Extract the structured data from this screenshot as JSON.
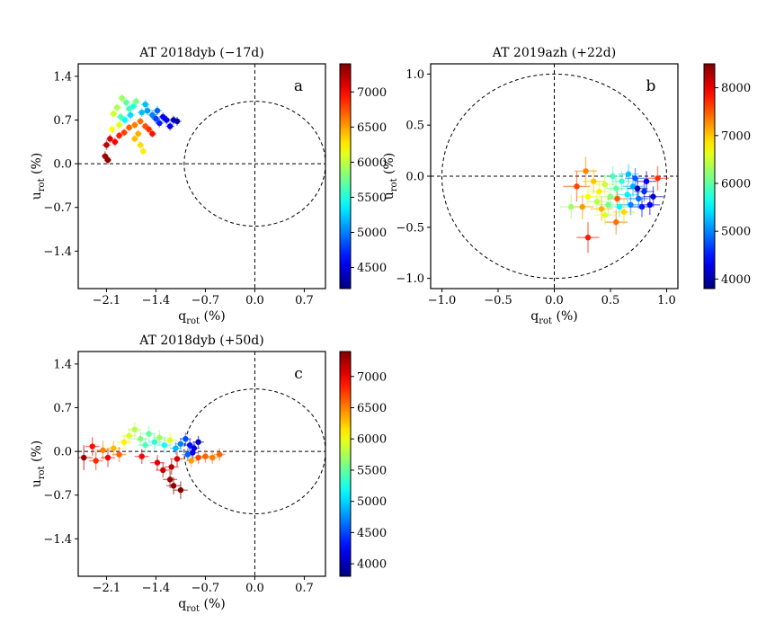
{
  "chart_data": [
    {
      "type": "scatter",
      "panel_label": "a",
      "title": "AT 2018dyb   (−17d)",
      "xlabel_main": "q",
      "xlabel_sub": "rot",
      "xlabel_unit": " (%)",
      "ylabel_main": "u",
      "ylabel_sub": "rot",
      "ylabel_unit": " (%)",
      "xlim": [
        -2.5,
        1.0
      ],
      "ylim": [
        -2.0,
        1.6
      ],
      "xticks": [
        -2.1,
        -1.4,
        -0.7,
        0.0,
        0.7
      ],
      "xtick_labels": [
        "−2.1",
        "−1.4",
        "−0.7",
        "0.0",
        "0.7"
      ],
      "yticks": [
        -1.4,
        -0.7,
        0.0,
        0.7,
        1.4
      ],
      "ytick_labels": [
        "−1.4",
        "−0.7",
        "0.0",
        "0.7",
        "1.4"
      ],
      "circle_radius": 1.0,
      "colorbar": {
        "min": 4200,
        "max": 7400,
        "ticks": [
          4500,
          5000,
          5500,
          6000,
          6500,
          7000
        ],
        "tick_labels": [
          "4500",
          "5000",
          "5500",
          "6000",
          "6500",
          "7000"
        ]
      },
      "points": [
        {
          "q": -2.12,
          "u": 0.12,
          "wl": 7300,
          "eq": 0.05,
          "eu": 0.08
        },
        {
          "q": -2.08,
          "u": 0.06,
          "wl": 7350,
          "eq": 0.05,
          "eu": 0.07
        },
        {
          "q": -2.1,
          "u": 0.3,
          "wl": 7200,
          "eq": 0.06,
          "eu": 0.08
        },
        {
          "q": -2.05,
          "u": 0.4,
          "wl": 7100,
          "eq": 0.05,
          "eu": 0.07
        },
        {
          "q": -1.98,
          "u": 0.35,
          "wl": 7000,
          "eq": 0.05,
          "eu": 0.07
        },
        {
          "q": -1.92,
          "u": 0.45,
          "wl": 6900,
          "eq": 0.05,
          "eu": 0.06
        },
        {
          "q": -1.85,
          "u": 0.5,
          "wl": 6800,
          "eq": 0.05,
          "eu": 0.06
        },
        {
          "q": -1.78,
          "u": 0.58,
          "wl": 6700,
          "eq": 0.05,
          "eu": 0.06
        },
        {
          "q": -1.7,
          "u": 0.62,
          "wl": 6600,
          "eq": 0.05,
          "eu": 0.06
        },
        {
          "q": -1.62,
          "u": 0.68,
          "wl": 6650,
          "eq": 0.05,
          "eu": 0.06
        },
        {
          "q": -1.55,
          "u": 0.6,
          "wl": 6750,
          "eq": 0.05,
          "eu": 0.06
        },
        {
          "q": -1.5,
          "u": 0.55,
          "wl": 6850,
          "eq": 0.05,
          "eu": 0.06
        },
        {
          "q": -1.45,
          "u": 0.48,
          "wl": 6950,
          "eq": 0.05,
          "eu": 0.06
        },
        {
          "q": -1.62,
          "u": 0.3,
          "wl": 6300,
          "eq": 0.05,
          "eu": 0.06
        },
        {
          "q": -1.58,
          "u": 0.2,
          "wl": 6250,
          "eq": 0.05,
          "eu": 0.06
        },
        {
          "q": -1.7,
          "u": 0.4,
          "wl": 6400,
          "eq": 0.05,
          "eu": 0.06
        },
        {
          "q": -1.65,
          "u": 0.48,
          "wl": 6450,
          "eq": 0.05,
          "eu": 0.06
        },
        {
          "q": -2.0,
          "u": 0.8,
          "wl": 6050,
          "eq": 0.06,
          "eu": 0.07
        },
        {
          "q": -1.95,
          "u": 0.9,
          "wl": 5950,
          "eq": 0.06,
          "eu": 0.07
        },
        {
          "q": -1.88,
          "u": 1.05,
          "wl": 5900,
          "eq": 0.06,
          "eu": 0.07
        },
        {
          "q": -1.82,
          "u": 0.98,
          "wl": 5700,
          "eq": 0.06,
          "eu": 0.07
        },
        {
          "q": -1.78,
          "u": 0.88,
          "wl": 5600,
          "eq": 0.06,
          "eu": 0.07
        },
        {
          "q": -1.72,
          "u": 0.92,
          "wl": 5500,
          "eq": 0.06,
          "eu": 0.07
        },
        {
          "q": -1.68,
          "u": 1.0,
          "wl": 5800,
          "eq": 0.06,
          "eu": 0.07
        },
        {
          "q": -1.9,
          "u": 0.75,
          "wl": 5650,
          "eq": 0.06,
          "eu": 0.07
        },
        {
          "q": -1.84,
          "u": 0.7,
          "wl": 5400,
          "eq": 0.06,
          "eu": 0.07
        },
        {
          "q": -1.76,
          "u": 0.78,
          "wl": 5300,
          "eq": 0.06,
          "eu": 0.07
        },
        {
          "q": -1.6,
          "u": 0.82,
          "wl": 5200,
          "eq": 0.06,
          "eu": 0.07
        },
        {
          "q": -1.52,
          "u": 0.85,
          "wl": 5100,
          "eq": 0.06,
          "eu": 0.07
        },
        {
          "q": -1.45,
          "u": 0.78,
          "wl": 5000,
          "eq": 0.06,
          "eu": 0.07
        },
        {
          "q": -1.4,
          "u": 0.72,
          "wl": 4800,
          "eq": 0.06,
          "eu": 0.07
        },
        {
          "q": -1.35,
          "u": 0.65,
          "wl": 4700,
          "eq": 0.06,
          "eu": 0.07
        },
        {
          "q": -1.3,
          "u": 0.75,
          "wl": 4600,
          "eq": 0.06,
          "eu": 0.07
        },
        {
          "q": -1.25,
          "u": 0.7,
          "wl": 4500,
          "eq": 0.06,
          "eu": 0.07
        },
        {
          "q": -1.2,
          "u": 0.6,
          "wl": 4550,
          "eq": 0.06,
          "eu": 0.07
        },
        {
          "q": -1.15,
          "u": 0.7,
          "wl": 4400,
          "eq": 0.06,
          "eu": 0.07
        },
        {
          "q": -1.1,
          "u": 0.68,
          "wl": 4350,
          "eq": 0.06,
          "eu": 0.07
        },
        {
          "q": -1.38,
          "u": 0.85,
          "wl": 4900,
          "eq": 0.06,
          "eu": 0.07
        },
        {
          "q": -1.55,
          "u": 0.95,
          "wl": 5200,
          "eq": 0.06,
          "eu": 0.07
        },
        {
          "q": -2.02,
          "u": 0.55,
          "wl": 6200,
          "eq": 0.06,
          "eu": 0.07
        },
        {
          "q": -1.92,
          "u": 0.62,
          "wl": 6100,
          "eq": 0.06,
          "eu": 0.07
        }
      ]
    },
    {
      "type": "scatter",
      "panel_label": "b",
      "title": "AT 2019azh   (+22d)",
      "xlabel_main": "q",
      "xlabel_sub": "rot",
      "xlabel_unit": " (%)",
      "ylabel_main": "u",
      "ylabel_sub": "rot",
      "ylabel_unit": " (%)",
      "xlim": [
        -1.1,
        1.1
      ],
      "ylim": [
        -1.1,
        1.1
      ],
      "xticks": [
        -1.0,
        -0.5,
        0.0,
        0.5,
        1.0
      ],
      "xtick_labels": [
        "−1.0",
        "−0.5",
        "0.0",
        "0.5",
        "1.0"
      ],
      "yticks": [
        -1.0,
        -0.5,
        0.0,
        0.5,
        1.0
      ],
      "ytick_labels": [
        "−1.0",
        "−0.5",
        "0.0",
        "0.5",
        "1.0"
      ],
      "circle_radius": 1.0,
      "colorbar": {
        "min": 3800,
        "max": 8500,
        "ticks": [
          4000,
          5000,
          6000,
          7000,
          8000
        ],
        "tick_labels": [
          "4000",
          "5000",
          "6000",
          "7000",
          "8000"
        ]
      },
      "points": [
        {
          "q": 0.3,
          "u": -0.6,
          "wl": 7800,
          "eq": 0.1,
          "eu": 0.15
        },
        {
          "q": 0.55,
          "u": -0.45,
          "wl": 7400,
          "eq": 0.1,
          "eu": 0.12
        },
        {
          "q": 0.2,
          "u": -0.1,
          "wl": 7600,
          "eq": 0.12,
          "eu": 0.15
        },
        {
          "q": 0.28,
          "u": 0.05,
          "wl": 7300,
          "eq": 0.1,
          "eu": 0.14
        },
        {
          "q": 0.35,
          "u": -0.05,
          "wl": 7000,
          "eq": 0.1,
          "eu": 0.12
        },
        {
          "q": 0.4,
          "u": -0.15,
          "wl": 6800,
          "eq": 0.09,
          "eu": 0.1
        },
        {
          "q": 0.45,
          "u": -0.08,
          "wl": 6500,
          "eq": 0.09,
          "eu": 0.1
        },
        {
          "q": 0.5,
          "u": -0.2,
          "wl": 6200,
          "eq": 0.09,
          "eu": 0.1
        },
        {
          "q": 0.55,
          "u": -0.12,
          "wl": 6000,
          "eq": 0.09,
          "eu": 0.1
        },
        {
          "q": 0.6,
          "u": -0.05,
          "wl": 5800,
          "eq": 0.09,
          "eu": 0.1
        },
        {
          "q": 0.65,
          "u": -0.18,
          "wl": 5500,
          "eq": 0.09,
          "eu": 0.1
        },
        {
          "q": 0.7,
          "u": -0.1,
          "wl": 5200,
          "eq": 0.09,
          "eu": 0.1
        },
        {
          "q": 0.75,
          "u": -0.22,
          "wl": 4900,
          "eq": 0.09,
          "eu": 0.1
        },
        {
          "q": 0.8,
          "u": -0.15,
          "wl": 4600,
          "eq": 0.09,
          "eu": 0.1
        },
        {
          "q": 0.85,
          "u": -0.28,
          "wl": 4300,
          "eq": 0.09,
          "eu": 0.1
        },
        {
          "q": 0.88,
          "u": -0.2,
          "wl": 4100,
          "eq": 0.09,
          "eu": 0.1
        },
        {
          "q": 0.78,
          "u": -0.3,
          "wl": 4500,
          "eq": 0.09,
          "eu": 0.1
        },
        {
          "q": 0.68,
          "u": -0.28,
          "wl": 5000,
          "eq": 0.09,
          "eu": 0.1
        },
        {
          "q": 0.58,
          "u": -0.3,
          "wl": 5600,
          "eq": 0.09,
          "eu": 0.1
        },
        {
          "q": 0.48,
          "u": -0.28,
          "wl": 6100,
          "eq": 0.09,
          "eu": 0.1
        },
        {
          "q": 0.38,
          "u": -0.25,
          "wl": 6400,
          "eq": 0.09,
          "eu": 0.1
        },
        {
          "q": 0.3,
          "u": -0.2,
          "wl": 6700,
          "eq": 0.09,
          "eu": 0.1
        },
        {
          "q": 0.25,
          "u": -0.3,
          "wl": 7200,
          "eq": 0.1,
          "eu": 0.12
        },
        {
          "q": 0.15,
          "u": -0.3,
          "wl": 6300,
          "eq": 0.1,
          "eu": 0.12
        },
        {
          "q": 0.42,
          "u": -0.32,
          "wl": 7100,
          "eq": 0.1,
          "eu": 0.12
        },
        {
          "q": 0.62,
          "u": -0.35,
          "wl": 6900,
          "eq": 0.1,
          "eu": 0.12
        },
        {
          "q": 0.72,
          "u": -0.02,
          "wl": 4800,
          "eq": 0.09,
          "eu": 0.1
        },
        {
          "q": 0.82,
          "u": -0.05,
          "wl": 4400,
          "eq": 0.09,
          "eu": 0.1
        },
        {
          "q": 0.92,
          "u": -0.02,
          "wl": 7700,
          "eq": 0.1,
          "eu": 0.12
        },
        {
          "q": 0.66,
          "u": 0.02,
          "wl": 5300,
          "eq": 0.09,
          "eu": 0.1
        },
        {
          "q": 0.52,
          "u": 0.0,
          "wl": 5900,
          "eq": 0.09,
          "eu": 0.1
        },
        {
          "q": 0.45,
          "u": -0.38,
          "wl": 6600,
          "eq": 0.09,
          "eu": 0.1
        },
        {
          "q": 0.56,
          "u": -0.22,
          "wl": 7500,
          "eq": 0.09,
          "eu": 0.1
        },
        {
          "q": 0.74,
          "u": -0.12,
          "wl": 4000,
          "eq": 0.09,
          "eu": 0.1
        }
      ]
    },
    {
      "type": "scatter",
      "panel_label": "c",
      "title": "AT 2018dyb   (+50d)",
      "xlabel_main": "q",
      "xlabel_sub": "rot",
      "xlabel_unit": " (%)",
      "ylabel_main": "u",
      "ylabel_sub": "rot",
      "ylabel_unit": " (%)",
      "xlim": [
        -2.5,
        1.0
      ],
      "ylim": [
        -2.0,
        1.6
      ],
      "xticks": [
        -2.1,
        -1.4,
        -0.7,
        0.0,
        0.7
      ],
      "xtick_labels": [
        "−2.1",
        "−1.4",
        "−0.7",
        "0.0",
        "0.7"
      ],
      "yticks": [
        -1.4,
        -0.7,
        0.0,
        0.7,
        1.4
      ],
      "ytick_labels": [
        "−1.4",
        "−0.7",
        "0.0",
        "0.7",
        "1.4"
      ],
      "circle_radius": 1.0,
      "colorbar": {
        "min": 3800,
        "max": 7400,
        "ticks": [
          4000,
          4500,
          5000,
          5500,
          6000,
          6500,
          7000
        ],
        "tick_labels": [
          "4000",
          "4500",
          "5000",
          "5500",
          "6000",
          "6500",
          "7000"
        ]
      },
      "points": [
        {
          "q": -2.42,
          "u": -0.1,
          "wl": 7300,
          "eq": 0.12,
          "eu": 0.2
        },
        {
          "q": -2.3,
          "u": 0.08,
          "wl": 6900,
          "eq": 0.1,
          "eu": 0.15
        },
        {
          "q": -2.25,
          "u": -0.15,
          "wl": 6800,
          "eq": 0.1,
          "eu": 0.15
        },
        {
          "q": -2.15,
          "u": 0.02,
          "wl": 6500,
          "eq": 0.1,
          "eu": 0.15
        },
        {
          "q": -2.08,
          "u": -0.1,
          "wl": 7000,
          "eq": 0.1,
          "eu": 0.15
        },
        {
          "q": -2.0,
          "u": 0.05,
          "wl": 6300,
          "eq": 0.1,
          "eu": 0.12
        },
        {
          "q": -1.92,
          "u": -0.05,
          "wl": 6600,
          "eq": 0.1,
          "eu": 0.12
        },
        {
          "q": -1.85,
          "u": 0.15,
          "wl": 6100,
          "eq": 0.1,
          "eu": 0.12
        },
        {
          "q": -1.78,
          "u": 0.25,
          "wl": 5900,
          "eq": 0.1,
          "eu": 0.12
        },
        {
          "q": -1.7,
          "u": 0.35,
          "wl": 5800,
          "eq": 0.1,
          "eu": 0.12
        },
        {
          "q": -1.62,
          "u": 0.2,
          "wl": 5600,
          "eq": 0.1,
          "eu": 0.12
        },
        {
          "q": -1.55,
          "u": 0.1,
          "wl": 5400,
          "eq": 0.1,
          "eu": 0.12
        },
        {
          "q": -1.5,
          "u": 0.28,
          "wl": 5500,
          "eq": 0.1,
          "eu": 0.12
        },
        {
          "q": -1.42,
          "u": 0.15,
          "wl": 5300,
          "eq": 0.1,
          "eu": 0.12
        },
        {
          "q": -1.35,
          "u": 0.22,
          "wl": 5700,
          "eq": 0.1,
          "eu": 0.12
        },
        {
          "q": -1.28,
          "u": 0.1,
          "wl": 5200,
          "eq": 0.1,
          "eu": 0.12
        },
        {
          "q": -1.2,
          "u": 0.18,
          "wl": 5950,
          "eq": 0.1,
          "eu": 0.12
        },
        {
          "q": -1.12,
          "u": 0.05,
          "wl": 4900,
          "eq": 0.08,
          "eu": 0.1
        },
        {
          "q": -1.05,
          "u": 0.12,
          "wl": 4700,
          "eq": 0.08,
          "eu": 0.1
        },
        {
          "q": -0.98,
          "u": 0.2,
          "wl": 4500,
          "eq": 0.08,
          "eu": 0.1
        },
        {
          "q": -0.92,
          "u": 0.1,
          "wl": 4300,
          "eq": 0.08,
          "eu": 0.1
        },
        {
          "q": -0.86,
          "u": 0.05,
          "wl": 4100,
          "eq": 0.08,
          "eu": 0.1
        },
        {
          "q": -0.8,
          "u": 0.15,
          "wl": 4000,
          "eq": 0.08,
          "eu": 0.1
        },
        {
          "q": -0.88,
          "u": -0.02,
          "wl": 4200,
          "eq": 0.08,
          "eu": 0.1
        },
        {
          "q": -0.95,
          "u": -0.05,
          "wl": 4600,
          "eq": 0.08,
          "eu": 0.1
        },
        {
          "q": -0.9,
          "u": -0.15,
          "wl": 6400,
          "eq": 0.08,
          "eu": 0.1
        },
        {
          "q": -0.8,
          "u": -0.1,
          "wl": 6700,
          "eq": 0.08,
          "eu": 0.1
        },
        {
          "q": -0.7,
          "u": -0.08,
          "wl": 6600,
          "eq": 0.08,
          "eu": 0.1
        },
        {
          "q": -0.6,
          "u": -0.1,
          "wl": 6500,
          "eq": 0.08,
          "eu": 0.1
        },
        {
          "q": -0.5,
          "u": -0.05,
          "wl": 6600,
          "eq": 0.08,
          "eu": 0.1
        },
        {
          "q": -1.1,
          "u": -0.12,
          "wl": 7100,
          "eq": 0.1,
          "eu": 0.12
        },
        {
          "q": -1.18,
          "u": -0.25,
          "wl": 7200,
          "eq": 0.1,
          "eu": 0.12
        },
        {
          "q": -1.2,
          "u": -0.45,
          "wl": 7300,
          "eq": 0.1,
          "eu": 0.14
        },
        {
          "q": -1.15,
          "u": -0.55,
          "wl": 7350,
          "eq": 0.1,
          "eu": 0.14
        },
        {
          "q": -1.05,
          "u": -0.62,
          "wl": 7400,
          "eq": 0.1,
          "eu": 0.14
        },
        {
          "q": -1.3,
          "u": -0.3,
          "wl": 7150,
          "eq": 0.1,
          "eu": 0.12
        },
        {
          "q": -1.38,
          "u": -0.18,
          "wl": 7050,
          "eq": 0.1,
          "eu": 0.12
        },
        {
          "q": -1.6,
          "u": -0.08,
          "wl": 6950,
          "eq": 0.1,
          "eu": 0.12
        }
      ]
    }
  ]
}
